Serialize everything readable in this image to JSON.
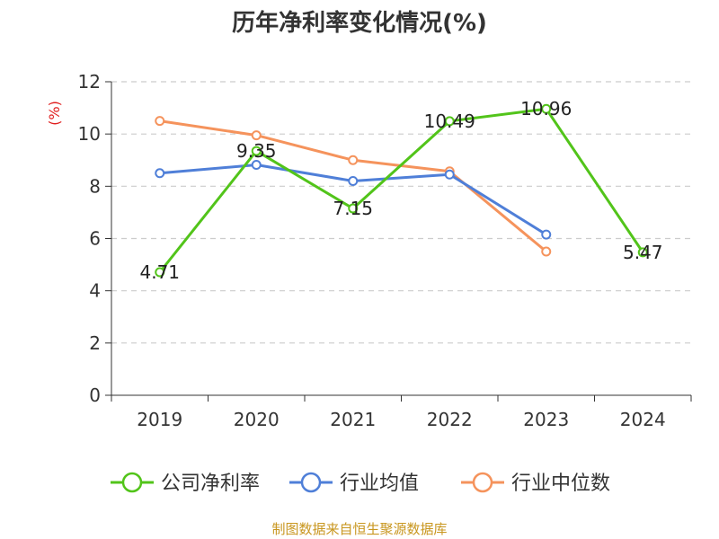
{
  "chart_data": {
    "type": "line",
    "title": "历年净利率变化情况(%)",
    "ylabel": "(%)",
    "xlabel": "",
    "categories": [
      "2019",
      "2020",
      "2021",
      "2022",
      "2023",
      "2024"
    ],
    "ylim": [
      0,
      12
    ],
    "yticks": [
      0,
      2,
      4,
      6,
      8,
      10,
      12
    ],
    "grid": true,
    "legend_position": "bottom",
    "series": [
      {
        "name": "公司净利率",
        "color": "#52c41a",
        "values": [
          4.71,
          9.35,
          7.15,
          10.49,
          10.96,
          5.47
        ],
        "labels": [
          "4.71",
          "9.35",
          "7.15",
          "10.49",
          "10.96",
          "5.47"
        ]
      },
      {
        "name": "行业均值",
        "color": "#4f7fd8",
        "values": [
          8.5,
          8.82,
          8.2,
          8.45,
          6.15,
          null
        ]
      },
      {
        "name": "行业中位数",
        "color": "#f5935c",
        "values": [
          10.5,
          9.95,
          9.0,
          8.57,
          5.5,
          null
        ]
      }
    ]
  },
  "source": "制图数据来自恒生聚源数据库"
}
